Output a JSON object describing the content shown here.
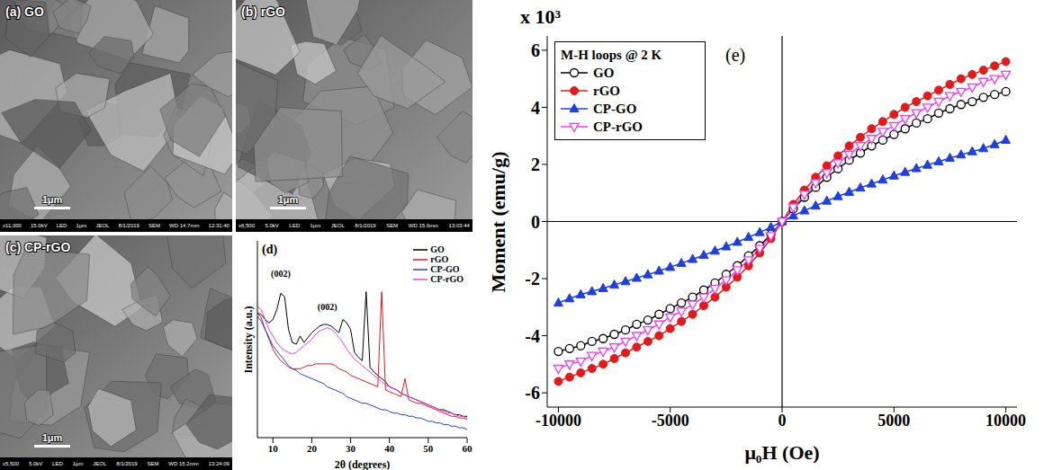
{
  "images": [
    {
      "label": "(a) GO",
      "scale_bar": "1μm",
      "info": [
        "x11,000",
        "15.0kV",
        "LED",
        "1μm",
        "JEOL",
        "8/1/2019",
        "SEM",
        "WD 14.7mm",
        "12:31:40"
      ]
    },
    {
      "label": "(b) rGO",
      "scale_bar": "1μm",
      "info": [
        "x6,500",
        "5.0kV",
        "LED",
        "1μm",
        "JEOL",
        "8/1/2019",
        "SEM",
        "WD 15.0mm",
        "13:03:44"
      ]
    },
    {
      "label": "(c) CP-rGO",
      "scale_bar": "1μm",
      "info": [
        "x5,500",
        "5.0kV",
        "LED",
        "1μm",
        "JEOL",
        "8/1/2019",
        "SEM",
        "WD 15.2mm",
        "13:24:09"
      ]
    }
  ],
  "chart_data": [
    {
      "type": "line",
      "panel": "(d)",
      "x_label": "2θ (degrees)",
      "y_label": "Intensity (a.u.)",
      "xlim": [
        6,
        60
      ],
      "xticks": [
        10,
        20,
        30,
        40,
        50,
        60
      ],
      "ylim": [
        0,
        120
      ],
      "tick_labels": "x",
      "grid": false,
      "legend": "upper right",
      "annotations": [
        {
          "text": "(002)",
          "x": 12,
          "y": 100
        },
        {
          "text": "(002)",
          "x": 24,
          "y": 80
        }
      ],
      "x": [
        6,
        7,
        8,
        9,
        10,
        11,
        12,
        13,
        14,
        15,
        16,
        17,
        18,
        19,
        20,
        21,
        22,
        23,
        24,
        25,
        26,
        27,
        28,
        29,
        30,
        31,
        32,
        33,
        34,
        35,
        36,
        37,
        38,
        39,
        40,
        41,
        42,
        43,
        44,
        45,
        46,
        47,
        48,
        49,
        50,
        51,
        52,
        53,
        54,
        55,
        56,
        57,
        58,
        59,
        60
      ],
      "series": [
        {
          "name": "GO",
          "color": "#000000",
          "values": [
            76,
            75,
            72,
            70,
            72,
            78,
            88,
            86,
            66,
            58,
            57,
            62,
            58,
            61,
            64,
            66,
            68,
            69,
            69,
            68,
            66,
            64,
            72,
            70,
            66,
            52,
            49,
            47,
            89,
            43,
            40,
            38,
            36,
            34,
            31,
            30,
            29,
            27,
            26,
            25,
            24,
            23,
            22,
            21,
            20,
            19,
            18,
            17,
            17,
            16,
            15,
            14,
            14,
            13,
            13
          ]
        },
        {
          "name": "rGO",
          "color": "#e31a1c",
          "values": [
            76,
            73,
            66,
            60,
            54,
            50,
            47,
            45,
            43,
            42,
            42,
            42,
            43,
            44,
            44,
            45,
            45,
            45,
            45,
            45,
            44,
            42,
            41,
            40,
            38,
            37,
            36,
            35,
            34,
            33,
            32,
            31,
            89,
            29,
            28,
            27,
            26,
            25,
            36,
            23,
            22,
            21,
            21,
            20,
            19,
            18,
            17,
            16,
            15,
            14,
            13,
            13,
            12,
            12,
            11
          ]
        },
        {
          "name": "CP-GO",
          "color": "#1f3fe0",
          "values": [
            74,
            71,
            66,
            61,
            56,
            53,
            50,
            47,
            44,
            42,
            41,
            39,
            38,
            37,
            36,
            35,
            34,
            33,
            31,
            30,
            29,
            28,
            27,
            25,
            24,
            23,
            22,
            21,
            21,
            20,
            19,
            18,
            17,
            17,
            16,
            15,
            15,
            14,
            14,
            13,
            13,
            12,
            12,
            11,
            10,
            10,
            9,
            9,
            8,
            8,
            7,
            7,
            6,
            6,
            5
          ]
        },
        {
          "name": "CP-rGO",
          "color": "#f03cf0",
          "values": [
            80,
            78,
            72,
            66,
            62,
            58,
            55,
            53,
            52,
            51,
            52,
            54,
            56,
            58,
            60,
            63,
            65,
            66,
            67,
            66,
            64,
            61,
            58,
            54,
            51,
            48,
            46,
            44,
            42,
            40,
            38,
            36,
            34,
            32,
            31,
            30,
            29,
            27,
            26,
            25,
            24,
            23,
            22,
            21,
            20,
            19,
            18,
            17,
            16,
            15,
            15,
            14,
            13,
            13,
            12
          ]
        }
      ]
    },
    {
      "type": "line",
      "panel": "(e)",
      "y_scale_label": "x 10³",
      "x_label": "μ₀H (Oe)",
      "y_label": "Moment (emu/g)",
      "legend_title": "M-H loops @ 2 K",
      "legend": "upper left",
      "grid": false,
      "xlim": [
        -10500,
        10500
      ],
      "xticks": [
        -10000,
        -5000,
        0,
        5000,
        10000
      ],
      "ylim": [
        -6.5,
        6.5
      ],
      "yticks": [
        -6,
        -4,
        -2,
        0,
        2,
        4,
        6
      ],
      "reference_lines": {
        "x": [
          0
        ],
        "y": [
          0
        ]
      },
      "x": [
        -10000,
        -9500,
        -9000,
        -8500,
        -8000,
        -7500,
        -7000,
        -6500,
        -6000,
        -5500,
        -5000,
        -4500,
        -4000,
        -3500,
        -3000,
        -2500,
        -2000,
        -1500,
        -1000,
        -500,
        0,
        500,
        1000,
        1500,
        2000,
        2500,
        3000,
        3500,
        4000,
        4500,
        5000,
        5500,
        6000,
        6500,
        7000,
        7500,
        8000,
        8500,
        9000,
        9500,
        10000
      ],
      "series": [
        {
          "name": "GO",
          "color": "#000000",
          "marker": "circle_open",
          "values": [
            -4.55,
            -4.45,
            -4.35,
            -4.2,
            -4.1,
            -3.95,
            -3.8,
            -3.6,
            -3.45,
            -3.25,
            -3.05,
            -2.85,
            -2.65,
            -2.4,
            -2.15,
            -1.85,
            -1.55,
            -1.2,
            -0.85,
            -0.45,
            0,
            0.45,
            0.85,
            1.2,
            1.55,
            1.85,
            2.15,
            2.4,
            2.65,
            2.85,
            3.05,
            3.25,
            3.45,
            3.6,
            3.8,
            3.95,
            4.1,
            4.2,
            4.35,
            4.45,
            4.55
          ]
        },
        {
          "name": "rGO",
          "color": "#e31a1c",
          "marker": "circle",
          "values": [
            -5.6,
            -5.45,
            -5.3,
            -5.15,
            -5.0,
            -4.8,
            -4.6,
            -4.4,
            -4.2,
            -4.0,
            -3.75,
            -3.5,
            -3.25,
            -2.95,
            -2.65,
            -2.3,
            -1.95,
            -1.55,
            -1.1,
            -0.6,
            0,
            0.6,
            1.1,
            1.55,
            1.95,
            2.3,
            2.65,
            2.95,
            3.25,
            3.5,
            3.75,
            4.0,
            4.2,
            4.4,
            4.6,
            4.8,
            5.0,
            5.15,
            5.3,
            5.45,
            5.6
          ]
        },
        {
          "name": "CP-GO",
          "color": "#1f3fe0",
          "marker": "triangle",
          "values": [
            -2.85,
            -2.7,
            -2.56,
            -2.45,
            -2.34,
            -2.22,
            -2.1,
            -1.98,
            -1.86,
            -1.73,
            -1.6,
            -1.46,
            -1.32,
            -1.18,
            -1.03,
            -0.88,
            -0.72,
            -0.55,
            -0.38,
            -0.2,
            0,
            0.2,
            0.38,
            0.55,
            0.72,
            0.88,
            1.03,
            1.18,
            1.32,
            1.46,
            1.6,
            1.73,
            1.86,
            1.98,
            2.1,
            2.22,
            2.34,
            2.45,
            2.56,
            2.7,
            2.85
          ]
        },
        {
          "name": "CP-rGO",
          "color": "#f03cf0",
          "marker": "triangle_down_open",
          "values": [
            -5.15,
            -5.0,
            -4.9,
            -4.7,
            -4.55,
            -4.4,
            -4.2,
            -4.0,
            -3.8,
            -3.6,
            -3.35,
            -3.15,
            -2.9,
            -2.65,
            -2.35,
            -2.05,
            -1.7,
            -1.35,
            -0.95,
            -0.5,
            0,
            0.5,
            0.95,
            1.35,
            1.7,
            2.05,
            2.35,
            2.65,
            2.9,
            3.15,
            3.35,
            3.6,
            3.8,
            4.0,
            4.2,
            4.4,
            4.55,
            4.7,
            4.9,
            5.0,
            5.15
          ]
        }
      ]
    }
  ]
}
